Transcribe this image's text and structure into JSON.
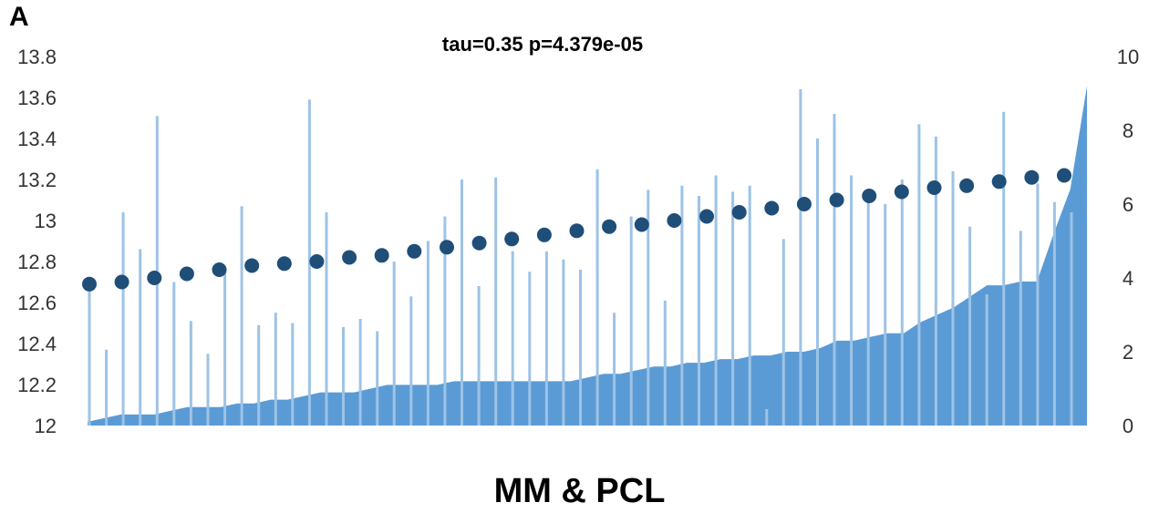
{
  "panel_label": "A",
  "chart_data": {
    "type": "bar",
    "title": "tau=0.35 p=4.379e-05",
    "xlabel": "MM & PCL",
    "ylabel": "",
    "ylim": [
      12,
      13.8
    ],
    "y2lim": [
      0,
      10
    ],
    "y_ticks": [
      "12",
      "12.2",
      "12.4",
      "12.6",
      "12.8",
      "13",
      "13.2",
      "13.4",
      "13.6",
      "13.8"
    ],
    "y2_ticks": [
      "0",
      "2",
      "4",
      "6",
      "8",
      "10"
    ],
    "grid": false,
    "legend": "none",
    "colors": {
      "bars": "#9dc3e6",
      "area": "#5b9bd5",
      "dots": "#1f4e79",
      "text": "#333333"
    },
    "series": [
      {
        "type": "bar",
        "axis": "left",
        "values": [
          12.68,
          12.37,
          13.04,
          12.86,
          13.51,
          12.7,
          12.51,
          12.35,
          12.77,
          13.07,
          12.49,
          12.55,
          12.5,
          13.59,
          13.04,
          12.48,
          12.52,
          12.46,
          12.8,
          12.63,
          12.9,
          13.02,
          13.2,
          12.68,
          13.21,
          12.85,
          12.75,
          12.85,
          12.81,
          12.76,
          13.25,
          12.55,
          13.02,
          13.15,
          12.61,
          13.17,
          13.12,
          13.22,
          13.14,
          13.17,
          12.08,
          12.91,
          13.64,
          13.4,
          13.52,
          13.22,
          13.09,
          13.08,
          13.2,
          13.47,
          13.41,
          13.24,
          12.97,
          12.64,
          13.53,
          12.95,
          13.18,
          13.09,
          13.04
        ]
      },
      {
        "type": "scatter",
        "axis": "left",
        "values": [
          12.69,
          12.7,
          12.72,
          12.74,
          12.76,
          12.78,
          12.79,
          12.8,
          12.82,
          12.83,
          12.85,
          12.87,
          12.89,
          12.91,
          12.93,
          12.95,
          12.97,
          12.98,
          13.0,
          13.02,
          13.04,
          13.06,
          13.08,
          13.1,
          13.12,
          13.14,
          13.16,
          13.17,
          13.19,
          13.21,
          13.22
        ]
      },
      {
        "type": "area",
        "axis": "right",
        "values": [
          0.1,
          0.2,
          0.3,
          0.3,
          0.3,
          0.4,
          0.5,
          0.5,
          0.5,
          0.6,
          0.6,
          0.7,
          0.7,
          0.8,
          0.9,
          0.9,
          0.9,
          1.0,
          1.1,
          1.1,
          1.1,
          1.1,
          1.2,
          1.2,
          1.2,
          1.2,
          1.2,
          1.2,
          1.2,
          1.2,
          1.3,
          1.4,
          1.4,
          1.5,
          1.6,
          1.6,
          1.7,
          1.7,
          1.8,
          1.8,
          1.9,
          1.9,
          2.0,
          2.0,
          2.1,
          2.3,
          2.3,
          2.4,
          2.5,
          2.5,
          2.8,
          3.0,
          3.2,
          3.5,
          3.8,
          3.8,
          3.9,
          3.9,
          5.2,
          6.4,
          9.2
        ]
      }
    ]
  }
}
